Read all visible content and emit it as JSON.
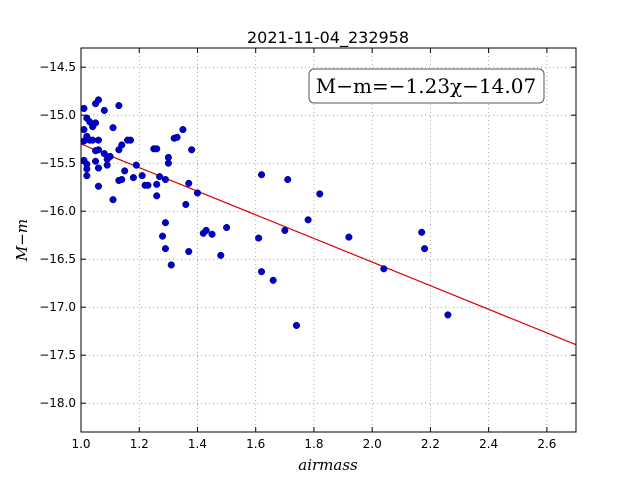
{
  "chart_data": {
    "type": "scatter",
    "title": "2021-11-04_232958",
    "xlabel": "airmass",
    "ylabel": "M−m",
    "xlim": [
      1.0,
      2.7
    ],
    "ylim": [
      -18.3,
      -14.3
    ],
    "y_inverted": true,
    "grid": true,
    "xticks": [
      1.0,
      1.2,
      1.4,
      1.6,
      1.8,
      2.0,
      2.2,
      2.4,
      2.6
    ],
    "xtick_labels": [
      "1.0",
      "1.2",
      "1.4",
      "1.6",
      "1.8",
      "2.0",
      "2.2",
      "2.4",
      "2.6"
    ],
    "yticks": [
      -14.5,
      -15.0,
      -15.5,
      -16.0,
      -16.5,
      -17.0,
      -17.5,
      -18.0
    ],
    "ytick_labels": [
      "−14.5",
      "−15.0",
      "−15.5",
      "−16.0",
      "−16.5",
      "−17.0",
      "−17.5",
      "−18.0"
    ],
    "annotation": "M−m=−1.23χ−14.07",
    "fit_line": {
      "slope": -1.23,
      "intercept": -14.07,
      "color": "#dd0000"
    },
    "point_color": "#0000cc",
    "points": [
      [
        1.01,
        -14.93
      ],
      [
        1.02,
        -15.03
      ],
      [
        1.03,
        -15.07
      ],
      [
        1.01,
        -15.15
      ],
      [
        1.02,
        -15.22
      ],
      [
        1.01,
        -15.27
      ],
      [
        1.03,
        -15.26
      ],
      [
        1.01,
        -15.47
      ],
      [
        1.02,
        -15.51
      ],
      [
        1.02,
        -15.56
      ],
      [
        1.02,
        -15.63
      ],
      [
        1.05,
        -14.88
      ],
      [
        1.06,
        -14.84
      ],
      [
        1.04,
        -15.12
      ],
      [
        1.05,
        -15.08
      ],
      [
        1.04,
        -15.26
      ],
      [
        1.05,
        -15.37
      ],
      [
        1.06,
        -15.26
      ],
      [
        1.06,
        -15.36
      ],
      [
        1.05,
        -15.48
      ],
      [
        1.06,
        -15.55
      ],
      [
        1.06,
        -15.74
      ],
      [
        1.08,
        -14.95
      ],
      [
        1.08,
        -15.4
      ],
      [
        1.09,
        -15.46
      ],
      [
        1.09,
        -15.52
      ],
      [
        1.1,
        -15.43
      ],
      [
        1.11,
        -15.13
      ],
      [
        1.11,
        -15.88
      ],
      [
        1.13,
        -14.9
      ],
      [
        1.13,
        -15.36
      ],
      [
        1.13,
        -15.68
      ],
      [
        1.14,
        -15.31
      ],
      [
        1.14,
        -15.67
      ],
      [
        1.15,
        -15.58
      ],
      [
        1.16,
        -15.26
      ],
      [
        1.17,
        -15.26
      ],
      [
        1.18,
        -15.65
      ],
      [
        1.19,
        -15.52
      ],
      [
        1.21,
        -15.63
      ],
      [
        1.22,
        -15.73
      ],
      [
        1.23,
        -15.73
      ],
      [
        1.25,
        -15.35
      ],
      [
        1.26,
        -15.35
      ],
      [
        1.26,
        -15.72
      ],
      [
        1.26,
        -15.84
      ],
      [
        1.27,
        -15.64
      ],
      [
        1.28,
        -16.26
      ],
      [
        1.29,
        -16.12
      ],
      [
        1.29,
        -16.39
      ],
      [
        1.29,
        -15.67
      ],
      [
        1.3,
        -15.5
      ],
      [
        1.3,
        -15.44
      ],
      [
        1.31,
        -16.56
      ],
      [
        1.32,
        -15.24
      ],
      [
        1.33,
        -15.23
      ],
      [
        1.35,
        -15.15
      ],
      [
        1.36,
        -15.93
      ],
      [
        1.37,
        -15.71
      ],
      [
        1.37,
        -16.42
      ],
      [
        1.38,
        -15.36
      ],
      [
        1.4,
        -15.81
      ],
      [
        1.42,
        -16.23
      ],
      [
        1.43,
        -16.2
      ],
      [
        1.45,
        -16.24
      ],
      [
        1.48,
        -16.46
      ],
      [
        1.5,
        -16.17
      ],
      [
        1.61,
        -16.28
      ],
      [
        1.62,
        -15.62
      ],
      [
        1.62,
        -16.63
      ],
      [
        1.66,
        -16.72
      ],
      [
        1.7,
        -16.2
      ],
      [
        1.71,
        -15.67
      ],
      [
        1.74,
        -17.19
      ],
      [
        1.78,
        -16.09
      ],
      [
        1.82,
        -15.82
      ],
      [
        1.92,
        -16.27
      ],
      [
        2.04,
        -16.6
      ],
      [
        2.17,
        -16.22
      ],
      [
        2.18,
        -16.39
      ],
      [
        2.26,
        -17.08
      ]
    ]
  }
}
